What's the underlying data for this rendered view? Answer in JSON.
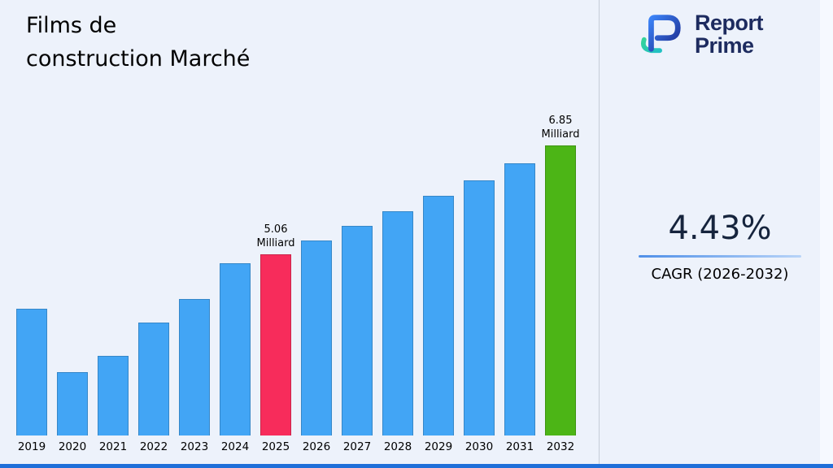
{
  "title": "Films de\nconstruction Marché",
  "logo": {
    "line1": "Report",
    "line2": "Prime"
  },
  "cagr": {
    "value": "4.43%",
    "label": "CAGR (2026-2032)"
  },
  "chart_data": {
    "type": "bar",
    "title": "Films de construction Marché",
    "xlabel": "",
    "ylabel": "",
    "unit": "Milliard",
    "categories": [
      "2019",
      "2020",
      "2021",
      "2022",
      "2023",
      "2024",
      "2025",
      "2026",
      "2027",
      "2028",
      "2029",
      "2030",
      "2031",
      "2032"
    ],
    "values": [
      4.15,
      3.11,
      3.38,
      3.92,
      4.32,
      4.9,
      5.06,
      5.28,
      5.52,
      5.76,
      6.02,
      6.28,
      6.56,
      6.85
    ],
    "bars": [
      {
        "year": "2019",
        "value": 4.15
      },
      {
        "year": "2020",
        "value": 3.11
      },
      {
        "year": "2021",
        "value": 3.38
      },
      {
        "year": "2022",
        "value": 3.92
      },
      {
        "year": "2023",
        "value": 4.32
      },
      {
        "year": "2024",
        "value": 4.9
      },
      {
        "year": "2025",
        "value": 5.06,
        "label": "5.06\nMilliard",
        "color": "highlight"
      },
      {
        "year": "2026",
        "value": 5.28
      },
      {
        "year": "2027",
        "value": 5.52
      },
      {
        "year": "2028",
        "value": 5.76
      },
      {
        "year": "2029",
        "value": 6.02
      },
      {
        "year": "2030",
        "value": 6.28
      },
      {
        "year": "2031",
        "value": 6.56
      },
      {
        "year": "2032",
        "value": 6.85,
        "label": "6.85\nMilliard",
        "color": "final"
      }
    ],
    "annotations": [
      "5.06 Milliard (2025)",
      "6.85 Milliard (2032)"
    ],
    "colors": {
      "default": "#42a5f5",
      "highlight": "#f72c5b",
      "final": "#4cb516"
    },
    "ylim": [
      2.06,
      7.0
    ],
    "grid": false,
    "legend": false
  }
}
